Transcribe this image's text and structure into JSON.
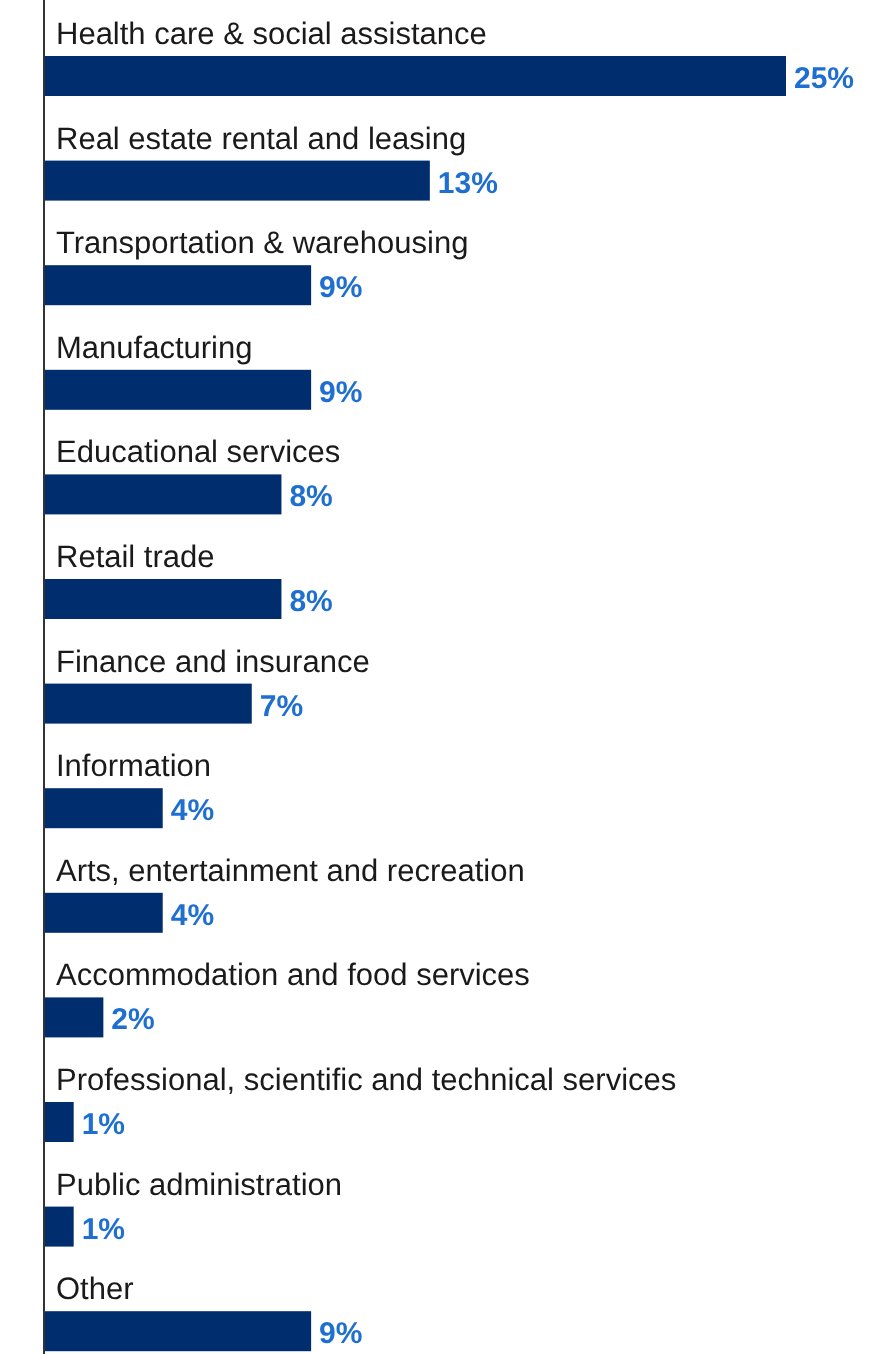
{
  "chart_data": {
    "type": "bar",
    "orientation": "horizontal",
    "categories": [
      "Health care & social assistance",
      "Real estate rental and leasing",
      "Transportation & warehousing",
      "Manufacturing",
      "Educational services",
      "Retail trade",
      "Finance and insurance",
      "Information",
      "Arts, entertainment and recreation",
      "Accommodation and food services",
      "Professional, scientific and technical services",
      "Public administration",
      "Other"
    ],
    "values": [
      25,
      13,
      9,
      9,
      8,
      8,
      7,
      4,
      4,
      2,
      1,
      1,
      9
    ],
    "value_labels": [
      "25%",
      "13%",
      "9%",
      "9%",
      "8%",
      "8%",
      "7%",
      "4%",
      "4%",
      "2%",
      "1%",
      "1%",
      "9%"
    ],
    "color": "#002d6e"
  }
}
